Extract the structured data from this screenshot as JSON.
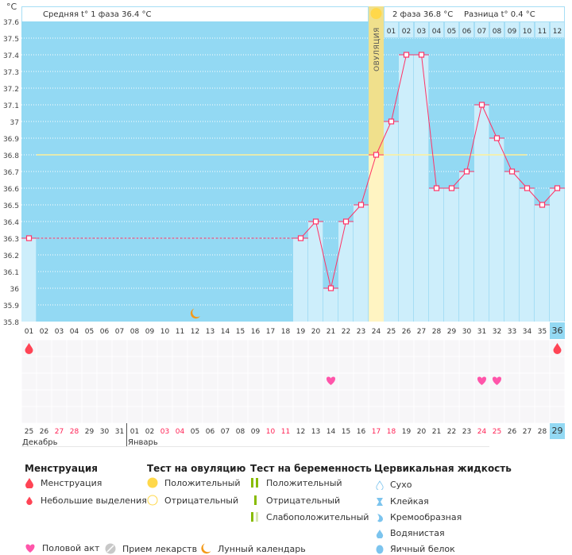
{
  "header": {
    "phase1_avg": "Средняя t° 1 фаза 36.4 °C",
    "phase2_avg": "2 фаза 36.8 °C",
    "difference": "Разница t° 0.4 °C",
    "ovulation_label": "ОВУЛЯЦИЯ"
  },
  "colors": {
    "background": "#93d9f3",
    "bar": "#cdeefb",
    "line": "#ff3366",
    "coverline": "#fff09a",
    "ovulation_top": "#f0e08c",
    "ovulation_bottom": "#fff4c2",
    "weekend": "#ff2255",
    "highlight": "#93d9f3"
  },
  "chart_data": {
    "type": "line",
    "y_axis": {
      "unit": "°C",
      "ylim": [
        35.8,
        37.6
      ],
      "tick_labels": [
        "37.6",
        "37.5",
        "37.4",
        "37.3",
        "37.2",
        "37.1",
        "37",
        "36.9",
        "36.8",
        "36.7",
        "36.6",
        "36.5",
        "36.4",
        "36.3",
        "36.2",
        "36.1",
        "36",
        "35.9",
        "35.8"
      ]
    },
    "cycle_days": [
      "01",
      "02",
      "03",
      "04",
      "05",
      "06",
      "07",
      "08",
      "09",
      "10",
      "11",
      "12",
      "13",
      "14",
      "15",
      "16",
      "17",
      "18",
      "19",
      "20",
      "21",
      "22",
      "23",
      "24",
      "25",
      "26",
      "27",
      "28",
      "29",
      "30",
      "31",
      "32",
      "33",
      "34",
      "35",
      "36"
    ],
    "temperatures": [
      36.3,
      null,
      null,
      null,
      null,
      null,
      null,
      null,
      null,
      null,
      null,
      null,
      null,
      null,
      null,
      null,
      null,
      null,
      36.3,
      36.4,
      36.0,
      36.4,
      36.5,
      36.8,
      37.0,
      37.4,
      37.4,
      36.6,
      36.6,
      36.7,
      37.1,
      36.9,
      36.7,
      36.6,
      36.5,
      36.6
    ],
    "coverline": 36.8,
    "ovulation_day": 24,
    "phase2_day_labels": [
      "01",
      "02",
      "03",
      "04",
      "05",
      "06",
      "07",
      "08",
      "09",
      "10",
      "11",
      "12"
    ],
    "current_day": 36,
    "dates": [
      "25",
      "26",
      "27",
      "28",
      "29",
      "30",
      "31",
      "01",
      "02",
      "03",
      "04",
      "05",
      "06",
      "07",
      "08",
      "09",
      "10",
      "11",
      "12",
      "13",
      "14",
      "15",
      "16",
      "17",
      "18",
      "19",
      "20",
      "21",
      "22",
      "23",
      "24",
      "25",
      "26",
      "27",
      "28",
      "29"
    ],
    "weekend_dates": [
      3,
      4,
      10,
      11,
      17,
      18,
      24,
      25,
      31,
      32
    ],
    "months": [
      {
        "label": "Декабрь",
        "start_day": 1
      },
      {
        "label": "Январь",
        "start_day": 8
      }
    ],
    "markers": {
      "menstruation_days": [
        1,
        36
      ],
      "intercourse_days": [
        21,
        31,
        32
      ],
      "moon_days": [
        12
      ]
    }
  },
  "legend": {
    "menstruation": {
      "title": "Менструация",
      "items": [
        "Менструация",
        "Небольшие выделения"
      ]
    },
    "ovulation_test": {
      "title": "Тест на овуляцию",
      "items": [
        "Положительный",
        "Отрицательный"
      ]
    },
    "pregnancy_test": {
      "title": "Тест на беременность",
      "items": [
        "Положительный",
        "Отрицательный",
        "Слабоположительный"
      ]
    },
    "cervical_fluid": {
      "title": "Цервикальная жидкость",
      "items": [
        "Сухо",
        "Клейкая",
        "Кремообразная",
        "Водянистая",
        "Яичный белок"
      ]
    },
    "other": [
      "Половой акт",
      "Прием лекарств",
      "Лунный календарь"
    ]
  }
}
